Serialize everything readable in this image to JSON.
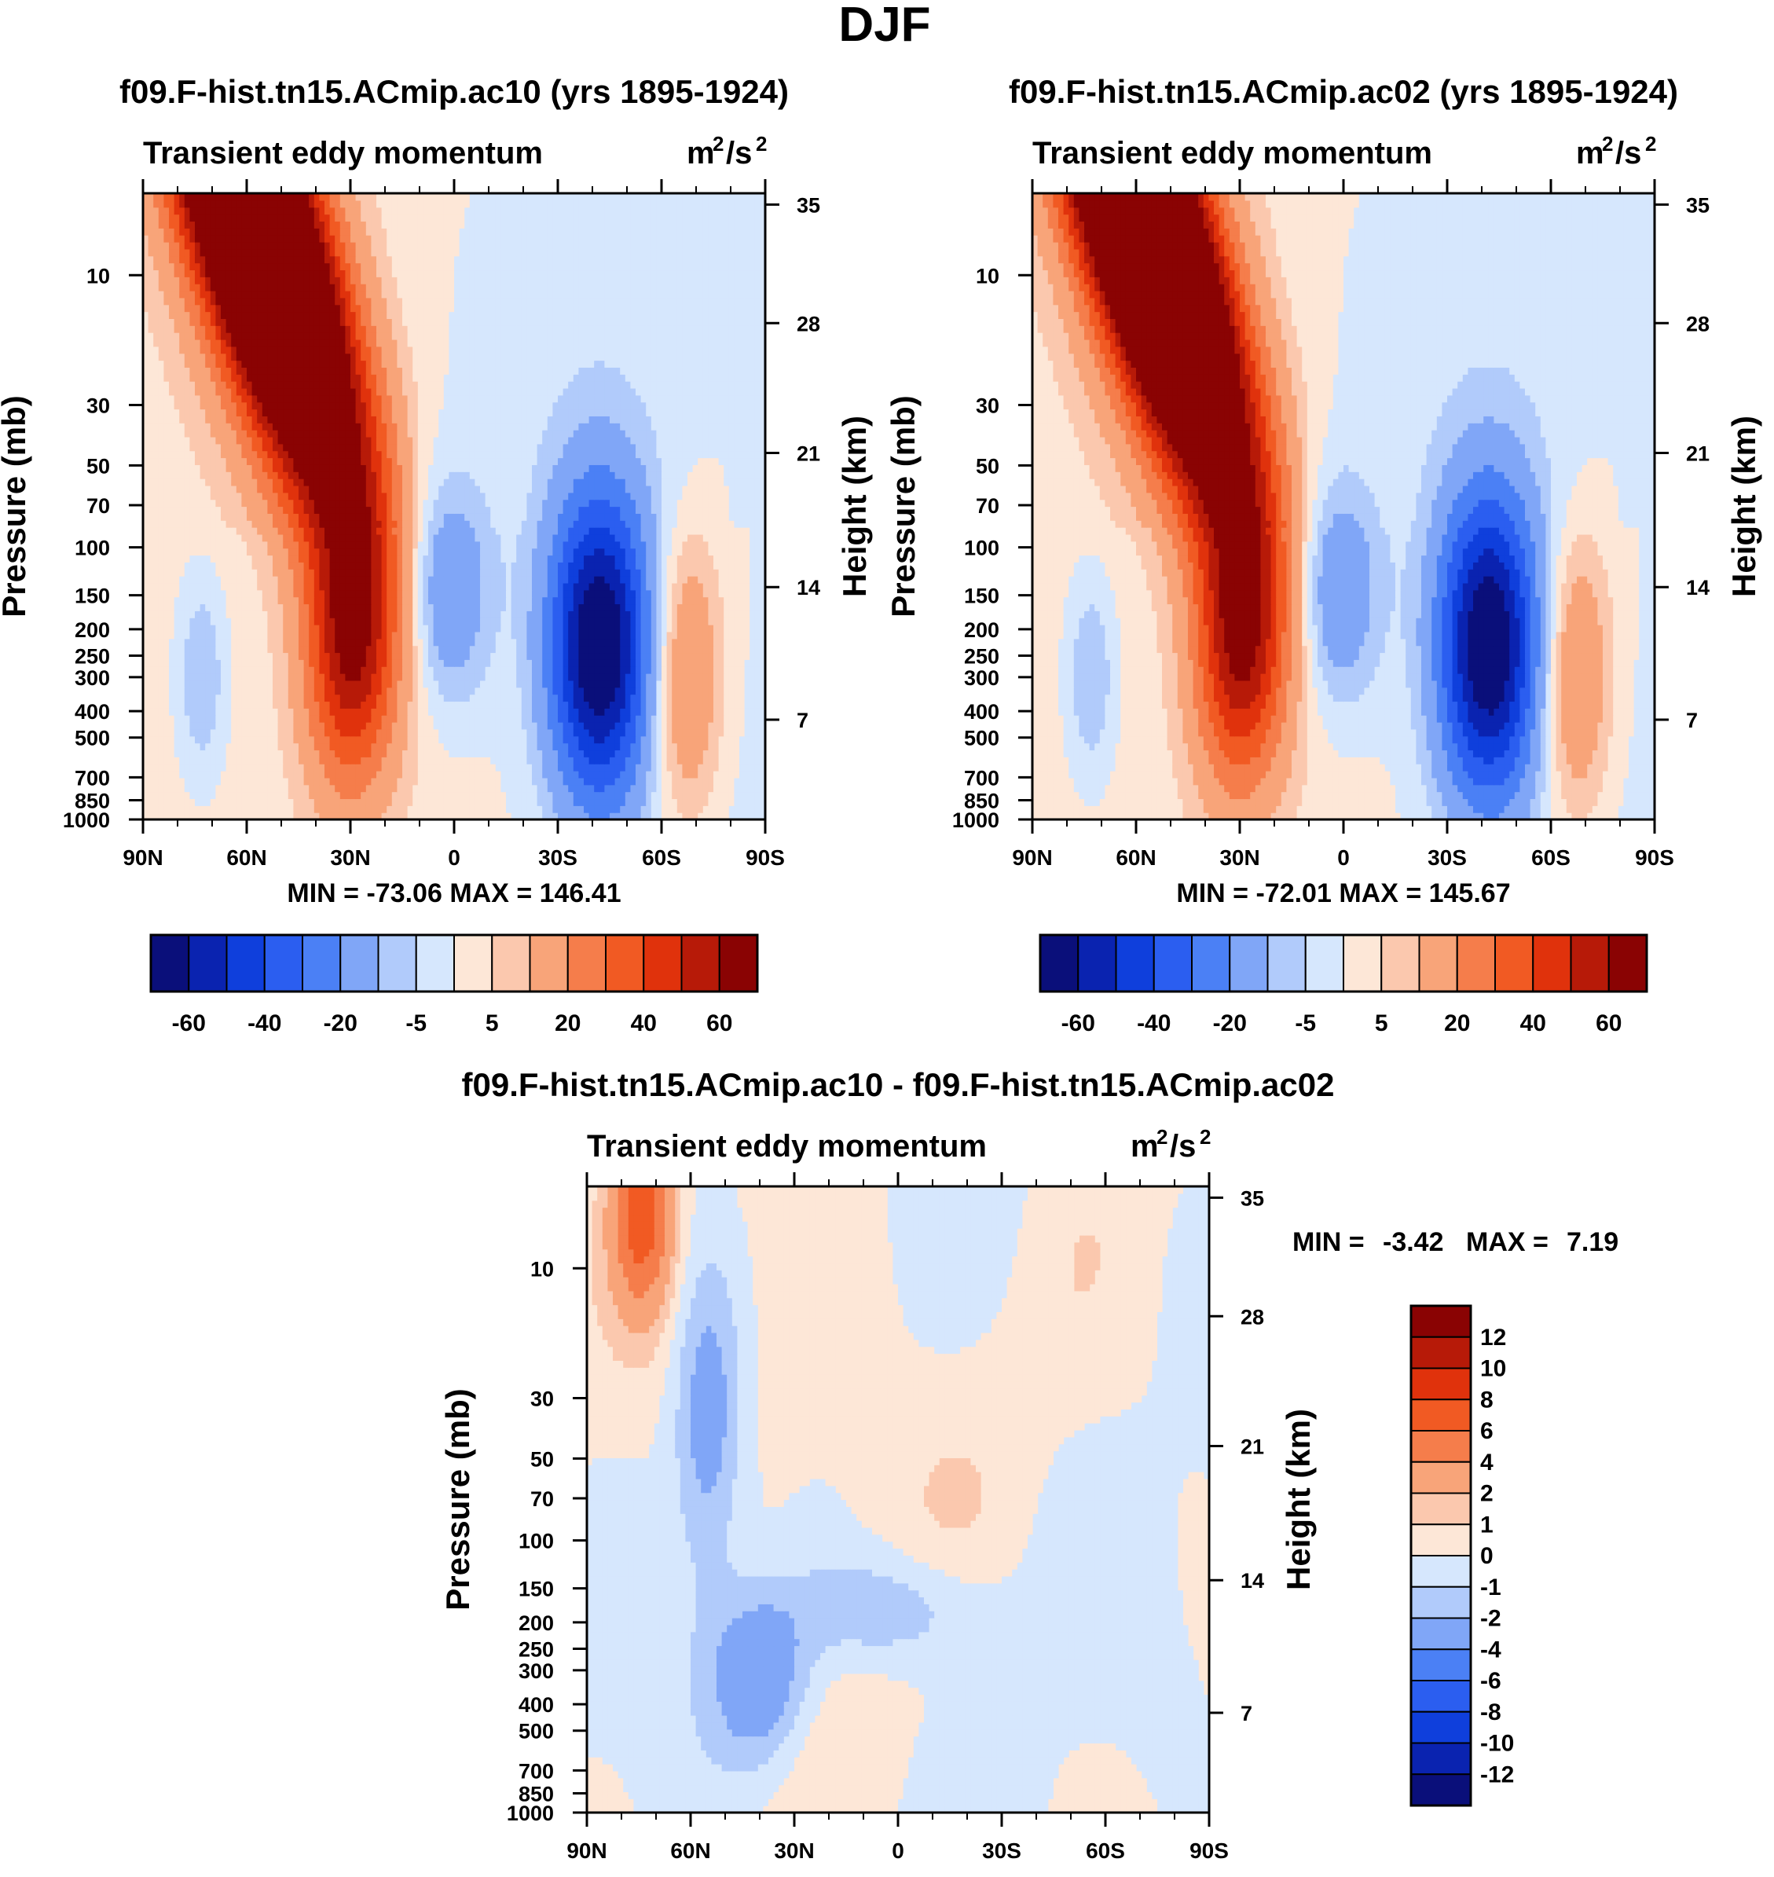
{
  "page_title": "DJF",
  "colors": {
    "blues": [
      "#0a0f7a",
      "#0a23b0",
      "#0f3fdc",
      "#2b5ef0",
      "#4b80f5",
      "#80a6f7",
      "#b1cbfb",
      "#d6e7fd"
    ],
    "reds": [
      "#fde7d7",
      "#fbc8ae",
      "#f8a479",
      "#f57d4b",
      "#f15a23",
      "#e0320c",
      "#b71a08",
      "#8a0303"
    ]
  },
  "chart_data": [
    {
      "type": "heatmap",
      "title": "f09.F-hist.tn15.ACmip.ac10 (yrs 1895-1924)",
      "subtitle_left": "Transient eddy momentum",
      "units": {
        "base": "m",
        "exp1": "2",
        "mid": "/s",
        "exp2": "2"
      },
      "ylabel": "Pressure (mb)",
      "ylabel_right": "Height (km)",
      "x_ticks": [
        "90N",
        "60N",
        "30N",
        "0",
        "30S",
        "60S",
        "90S"
      ],
      "x_range": [
        90,
        -90
      ],
      "y_ticks": [
        "10",
        "30",
        "50",
        "70",
        "100",
        "150",
        "200",
        "250",
        "300",
        "400",
        "500",
        "700",
        "850",
        "1000"
      ],
      "y_range_mb": [
        1000,
        5
      ],
      "height_ticks": [
        "35",
        "28",
        "21",
        "14",
        "7"
      ],
      "minmax": "MIN = -73.06  MAX = 146.41",
      "levels": [
        -70,
        -60,
        -50,
        -40,
        -30,
        -20,
        -10,
        -5,
        0,
        5,
        10,
        20,
        30,
        40,
        50,
        60,
        70
      ],
      "colorbar_labels": [
        "-60",
        "-40",
        "-20",
        "-5",
        "5",
        "20",
        "40",
        "60"
      ],
      "features": [
        {
          "type": "stratospheric_max",
          "lat": 57,
          "p_mb": 7,
          "peak": 146.41
        },
        {
          "type": "jet_max",
          "lat": 30,
          "p_mb": 230,
          "peak": 55
        },
        {
          "type": "jet_min",
          "lat": -42,
          "p_mb": 230,
          "peak": -73.06
        },
        {
          "type": "tropical_min",
          "lat": 3,
          "p_mb": 150,
          "peak": -22
        },
        {
          "type": "polar_max",
          "lat": -67,
          "p_mb": 300,
          "peak": 22
        },
        {
          "type": "arctic_min",
          "lat": 73,
          "p_mb": 300,
          "peak": -12
        }
      ]
    },
    {
      "type": "heatmap",
      "title": "f09.F-hist.tn15.ACmip.ac02 (yrs 1895-1924)",
      "subtitle_left": "Transient eddy momentum",
      "units": {
        "base": "m",
        "exp1": "2",
        "mid": "/s",
        "exp2": "2"
      },
      "ylabel": "Pressure (mb)",
      "ylabel_right": "Height (km)",
      "x_ticks": [
        "90N",
        "60N",
        "30N",
        "0",
        "30S",
        "60S",
        "90S"
      ],
      "x_range": [
        90,
        -90
      ],
      "y_ticks": [
        "10",
        "30",
        "50",
        "70",
        "100",
        "150",
        "200",
        "250",
        "300",
        "400",
        "500",
        "700",
        "850",
        "1000"
      ],
      "y_range_mb": [
        1000,
        5
      ],
      "height_ticks": [
        "35",
        "28",
        "21",
        "14",
        "7"
      ],
      "minmax": "MIN = -72.01  MAX = 145.67",
      "levels": [
        -70,
        -60,
        -50,
        -40,
        -30,
        -20,
        -10,
        -5,
        0,
        5,
        10,
        20,
        30,
        40,
        50,
        60,
        70
      ],
      "colorbar_labels": [
        "-60",
        "-40",
        "-20",
        "-5",
        "5",
        "20",
        "40",
        "60"
      ],
      "features": [
        {
          "type": "stratospheric_max",
          "lat": 57,
          "p_mb": 7,
          "peak": 145.67
        },
        {
          "type": "jet_max",
          "lat": 30,
          "p_mb": 230,
          "peak": 55
        },
        {
          "type": "jet_min",
          "lat": -42,
          "p_mb": 230,
          "peak": -72.01
        },
        {
          "type": "tropical_min",
          "lat": 3,
          "p_mb": 150,
          "peak": -22
        },
        {
          "type": "polar_max",
          "lat": -67,
          "p_mb": 300,
          "peak": 22
        },
        {
          "type": "arctic_min",
          "lat": 73,
          "p_mb": 300,
          "peak": -12
        }
      ]
    },
    {
      "type": "heatmap",
      "title": "f09.F-hist.tn15.ACmip.ac10 - f09.F-hist.tn15.ACmip.ac02",
      "subtitle_left": "Transient eddy momentum",
      "units": {
        "base": "m",
        "exp1": "2",
        "mid": "/s",
        "exp2": "2"
      },
      "ylabel": "Pressure (mb)",
      "ylabel_right": "Height (km)",
      "x_ticks": [
        "90N",
        "60N",
        "30N",
        "0",
        "30S",
        "60S",
        "90S"
      ],
      "x_range": [
        90,
        -90
      ],
      "y_ticks": [
        "10",
        "30",
        "50",
        "70",
        "100",
        "150",
        "200",
        "250",
        "300",
        "400",
        "500",
        "700",
        "850",
        "1000"
      ],
      "y_range_mb": [
        1000,
        5
      ],
      "height_ticks": [
        "35",
        "28",
        "21",
        "14",
        "7"
      ],
      "minmax_label_min": "MIN =",
      "minmax_value_min": "-3.42",
      "minmax_label_max": "MAX =",
      "minmax_value_max": "7.19",
      "levels": [
        -12,
        -10,
        -8,
        -6,
        -4,
        -2,
        -1,
        0,
        1,
        2,
        4,
        6,
        8,
        10,
        12
      ],
      "colorbar_labels": [
        "12",
        "10",
        "8",
        "6",
        "4",
        "2",
        "1",
        "0",
        "-1",
        "-2",
        "-4",
        "-6",
        "-8",
        "-10",
        "-12"
      ],
      "features": [
        {
          "type": "strat_max",
          "lat": 74,
          "p_mb": 6,
          "peak": 7.19
        },
        {
          "type": "strat_min",
          "lat": 55,
          "p_mb": 35,
          "peak": -3.0
        },
        {
          "type": "tropo_min",
          "lat": 40,
          "p_mb": 320,
          "peak": -3.42
        },
        {
          "type": "tropical_min",
          "lat": 0,
          "p_mb": 180,
          "peak": -2.2
        }
      ]
    }
  ]
}
